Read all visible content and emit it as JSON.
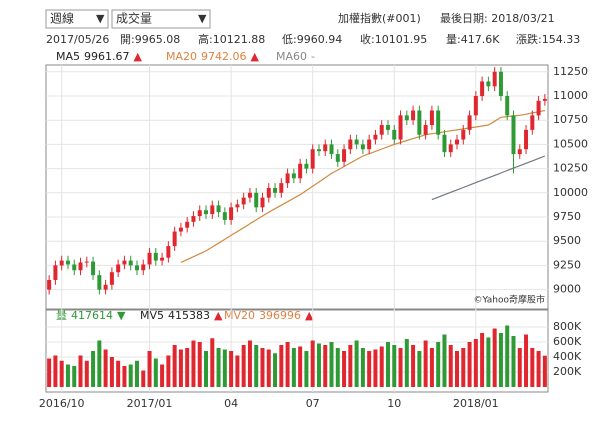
{
  "controls": {
    "period": "週線",
    "indicator": "成交量"
  },
  "header": {
    "title": "加權指數(#001)",
    "last_date": "最後日期: 2018/03/21"
  },
  "info": [
    "2017/05/26",
    "開:9965.08",
    "高:10121.88",
    "低:9960.94",
    "收:10101.95",
    "量:417.6K",
    "漲跌:154.33"
  ],
  "chart_data": {
    "type": "candlestick",
    "legend": [
      {
        "name": "MA5",
        "value": "9961.67",
        "arrow": "▲",
        "color": "#222222"
      },
      {
        "name": "MA20",
        "value": "9742.06",
        "arrow": "▲",
        "color": "#e08040"
      },
      {
        "name": "MA60",
        "value": "-",
        "color": "#888888"
      }
    ],
    "categories": [
      null,
      null,
      "2016/10",
      null,
      null,
      null,
      null,
      null,
      null,
      null,
      null,
      null,
      null,
      null,
      null,
      null,
      "2017/01",
      null,
      null,
      null,
      null,
      null,
      null,
      null,
      null,
      null,
      null,
      null,
      null,
      "04",
      null,
      null,
      null,
      null,
      null,
      null,
      null,
      null,
      null,
      null,
      null,
      null,
      "07",
      null,
      null,
      null,
      null,
      null,
      null,
      null,
      null,
      null,
      null,
      null,
      null,
      "10",
      null,
      null,
      null,
      null,
      null,
      null,
      null,
      null,
      null,
      null,
      null,
      null,
      "2018/01",
      null,
      null,
      null,
      null,
      null,
      null,
      null,
      null,
      null,
      null,
      null
    ],
    "candles": {
      "open": [
        9000,
        9100,
        9250,
        9300,
        9260,
        9200,
        9280,
        9290,
        9150,
        9000,
        9050,
        9180,
        9260,
        9300,
        9250,
        9200,
        9260,
        9380,
        9300,
        9330,
        9450,
        9600,
        9640,
        9700,
        9760,
        9820,
        9780,
        9870,
        9800,
        9720,
        9850,
        9880,
        9950,
        10000,
        9850,
        9950,
        10050,
        10000,
        10100,
        10200,
        10150,
        10300,
        10250,
        10450,
        10430,
        10500,
        10400,
        10320,
        10450,
        10550,
        10500,
        10450,
        10550,
        10600,
        10700,
        10650,
        10550,
        10800,
        10750,
        10850,
        10600,
        10700,
        10850,
        10600,
        10420,
        10500,
        10550,
        10650,
        10800,
        11000,
        11150,
        11100,
        11250,
        11000,
        10800,
        10400,
        10450,
        10650,
        10800,
        10950
      ],
      "high": [
        9150,
        9300,
        9350,
        9350,
        9310,
        9330,
        9340,
        9340,
        9200,
        9100,
        9230,
        9310,
        9350,
        9350,
        9300,
        9310,
        9430,
        9430,
        9380,
        9500,
        9650,
        9690,
        9750,
        9810,
        9870,
        9870,
        9920,
        9920,
        9850,
        9900,
        9930,
        10000,
        10050,
        10050,
        10000,
        10100,
        10100,
        10150,
        10250,
        10250,
        10350,
        10350,
        10500,
        10500,
        10550,
        10550,
        10450,
        10500,
        10600,
        10600,
        10550,
        10600,
        10650,
        10750,
        10750,
        10700,
        10850,
        10850,
        10900,
        10900,
        10750,
        10900,
        10900,
        10650,
        10550,
        10600,
        10700,
        10850,
        11050,
        11200,
        11200,
        11300,
        11300,
        11050,
        10850,
        10500,
        10700,
        10850,
        11000,
        11020
      ],
      "low": [
        8950,
        9050,
        9200,
        9210,
        9150,
        9150,
        9230,
        9100,
        8950,
        8950,
        9000,
        9130,
        9210,
        9200,
        9150,
        9150,
        9210,
        9250,
        9250,
        9280,
        9400,
        9550,
        9590,
        9650,
        9710,
        9730,
        9730,
        9750,
        9670,
        9670,
        9800,
        9830,
        9900,
        9800,
        9800,
        9900,
        9950,
        9950,
        10050,
        10100,
        10100,
        10200,
        10200,
        10380,
        10380,
        10350,
        10270,
        10270,
        10400,
        10450,
        10400,
        10400,
        10500,
        10550,
        10600,
        10500,
        10500,
        10700,
        10700,
        10550,
        10550,
        10650,
        10550,
        10370,
        10370,
        10450,
        10500,
        10600,
        10750,
        10950,
        11050,
        11050,
        10950,
        10750,
        10200,
        10350,
        10400,
        10600,
        10750,
        10900
      ],
      "close": [
        9100,
        9250,
        9300,
        9260,
        9200,
        9280,
        9290,
        9150,
        9000,
        9050,
        9180,
        9260,
        9300,
        9250,
        9200,
        9260,
        9380,
        9300,
        9330,
        9450,
        9600,
        9640,
        9700,
        9760,
        9820,
        9780,
        9870,
        9800,
        9720,
        9850,
        9880,
        9950,
        10000,
        9850,
        9950,
        10050,
        10000,
        10100,
        10200,
        10150,
        10300,
        10250,
        10450,
        10430,
        10500,
        10400,
        10320,
        10450,
        10550,
        10500,
        10450,
        10550,
        10600,
        10700,
        10650,
        10550,
        10800,
        10750,
        10850,
        10600,
        10700,
        10850,
        10600,
        10420,
        10500,
        10550,
        10650,
        10800,
        11000,
        11150,
        11100,
        11250,
        11000,
        10800,
        10400,
        10450,
        10650,
        10800,
        10950,
        10970
      ]
    },
    "up_color": "#e0262e",
    "down_color": "#2e9a36",
    "series": [
      {
        "name": "MA20",
        "color": "#d08a40",
        "values": [
          null,
          null,
          null,
          null,
          null,
          null,
          null,
          null,
          null,
          null,
          null,
          null,
          null,
          null,
          null,
          null,
          null,
          null,
          null,
          null,
          null,
          9280,
          9310,
          9340,
          9370,
          9400,
          9440,
          9480,
          9520,
          9560,
          9600,
          9640,
          9680,
          9720,
          9760,
          9800,
          9836,
          9872,
          9908,
          9944,
          9980,
          10024,
          10068,
          10112,
          10156,
          10200,
          10236,
          10272,
          10308,
          10344,
          10380,
          10404,
          10428,
          10452,
          10476,
          10500,
          10520,
          10540,
          10560,
          10580,
          10600,
          10610,
          10620,
          10630,
          10640,
          10650,
          10660,
          10670,
          10680,
          10690,
          10700,
          10740,
          10780,
          10787,
          10793,
          10800,
          10812,
          10825,
          10837,
          10850
        ]
      },
      {
        "name": "MA60",
        "color": "#707880",
        "values": [
          null,
          null,
          null,
          null,
          null,
          null,
          null,
          null,
          null,
          null,
          null,
          null,
          null,
          null,
          null,
          null,
          null,
          null,
          null,
          null,
          null,
          null,
          null,
          null,
          null,
          null,
          null,
          null,
          null,
          null,
          null,
          null,
          null,
          null,
          null,
          null,
          null,
          null,
          null,
          null,
          null,
          null,
          null,
          null,
          null,
          null,
          null,
          null,
          null,
          null,
          null,
          null,
          null,
          null,
          null,
          null,
          null,
          null,
          null,
          null,
          null,
          9930,
          9955,
          9980,
          10005,
          10030,
          10055,
          10080,
          10105,
          10130,
          10155,
          10180,
          10205,
          10230,
          10255,
          10280,
          10305,
          10330,
          10355,
          10380
        ]
      }
    ],
    "ylim": [
      8800,
      11320
    ],
    "yticks": [
      9000,
      9250,
      9500,
      9750,
      10000,
      10250,
      10500,
      10750,
      11000,
      11250
    ],
    "watermark": "©Yahoo奇摩股市",
    "volume": {
      "legend": [
        {
          "name": "量",
          "value": "417614",
          "arrow": "▼",
          "color": "#2e9a36"
        },
        {
          "name": "MV5",
          "value": "415383",
          "arrow": "▲",
          "color": "#222222"
        },
        {
          "name": "MV20",
          "value": "396996",
          "arrow": "▲",
          "color": "#e08040"
        }
      ],
      "values": [
        380000,
        420000,
        350000,
        300000,
        280000,
        420000,
        350000,
        480000,
        620000,
        500000,
        400000,
        350000,
        280000,
        300000,
        350000,
        220000,
        480000,
        380000,
        300000,
        420000,
        560000,
        500000,
        520000,
        620000,
        600000,
        480000,
        650000,
        520000,
        500000,
        480000,
        420000,
        560000,
        620000,
        560000,
        520000,
        500000,
        450000,
        560000,
        600000,
        520000,
        540000,
        480000,
        620000,
        580000,
        560000,
        600000,
        520000,
        480000,
        560000,
        620000,
        520000,
        480000,
        500000,
        540000,
        600000,
        560000,
        520000,
        640000,
        560000,
        480000,
        620000,
        520000,
        600000,
        700000,
        560000,
        480000,
        520000,
        600000,
        640000,
        720000,
        660000,
        780000,
        720000,
        820000,
        680000,
        520000,
        700000,
        520000,
        480000,
        417614
      ],
      "ylim": [
        0,
        1000000
      ],
      "yticks": [
        {
          "value": 200000,
          "label": "200K"
        },
        {
          "value": 400000,
          "label": "400K"
        },
        {
          "value": 600000,
          "label": "600K"
        },
        {
          "value": 800000,
          "label": "800K"
        }
      ]
    }
  }
}
